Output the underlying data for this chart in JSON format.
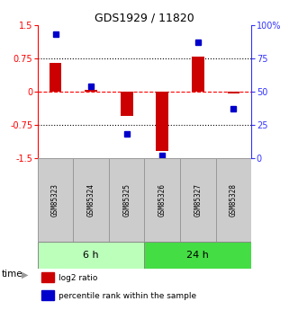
{
  "title": "GDS1929 / 11820",
  "samples": [
    "GSM85323",
    "GSM85324",
    "GSM85325",
    "GSM85326",
    "GSM85327",
    "GSM85328"
  ],
  "log2_ratio": [
    0.65,
    0.04,
    -0.55,
    -1.35,
    0.78,
    -0.05
  ],
  "percentile_rank": [
    93,
    54,
    18,
    2,
    87,
    37
  ],
  "bar_color": "#CC0000",
  "dot_color": "#0000CC",
  "ylim_left": [
    -1.5,
    1.5
  ],
  "ylim_right": [
    0,
    100
  ],
  "yticks_left": [
    -1.5,
    -0.75,
    0,
    0.75,
    1.5
  ],
  "yticks_right": [
    0,
    25,
    50,
    75,
    100
  ],
  "ytick_labels_left": [
    "-1.5",
    "-0.75",
    "0",
    "0.75",
    "1.5"
  ],
  "ytick_labels_right": [
    "0",
    "25",
    "50",
    "75",
    "100%"
  ],
  "hlines_dotted": [
    0.75,
    -0.75
  ],
  "hline_dashed": 0.0,
  "group_labels": [
    "6 h",
    "24 h"
  ],
  "group_ranges": [
    [
      0,
      3
    ],
    [
      3,
      6
    ]
  ],
  "group_colors": [
    "#bbffbb",
    "#44dd44"
  ],
  "time_label": "time",
  "legend_items": [
    "log2 ratio",
    "percentile rank within the sample"
  ],
  "bg_color": "#ffffff",
  "bar_width": 0.35
}
